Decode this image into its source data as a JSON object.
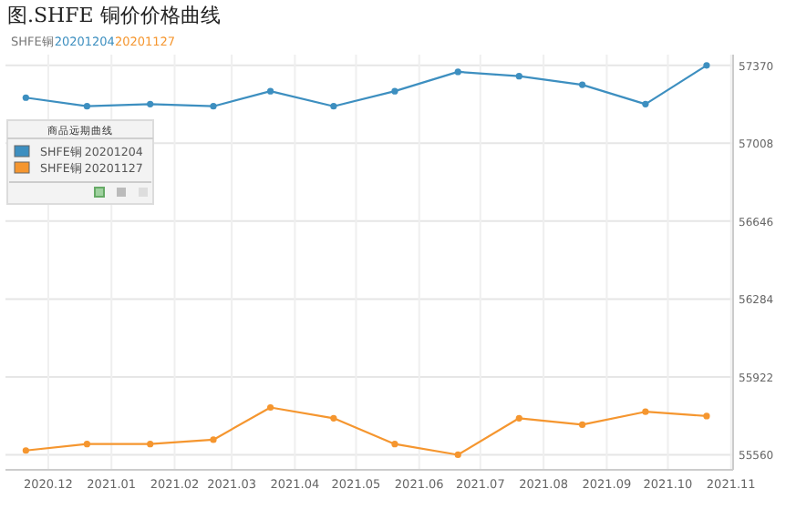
{
  "chart_data": {
    "type": "line",
    "title": "图.SHFE 铜价价格曲线",
    "subtitle": "SHFE铜",
    "annotations": [
      "20201204",
      "20201127"
    ],
    "legend_title": "商品远期曲线",
    "x": [
      "2020-11-20",
      "2020-12-20",
      "2021-01-20",
      "2021-02-20",
      "2021-03-20",
      "2021-04-20",
      "2021-05-20",
      "2021-06-20",
      "2021-07-20",
      "2021-08-20",
      "2021-09-20",
      "2021-10-20"
    ],
    "series": [
      {
        "name": "SHFE铜 20201204",
        "color": "#3d8fc0",
        "values": [
          57220,
          57180,
          57190,
          57180,
          57250,
          57180,
          57250,
          57340,
          57320,
          57280,
          57190,
          57370
        ]
      },
      {
        "name": "SHFE铜 20201127",
        "color": "#f5962f",
        "values": [
          55580,
          55610,
          55610,
          55630,
          55780,
          55730,
          55610,
          55560,
          55730,
          55700,
          55760,
          55740
        ]
      }
    ],
    "xlim": [
      "2020-11-10",
      "2021-11-02"
    ],
    "xticks": [
      {
        "value": "2020-12-01",
        "label": "2020.12"
      },
      {
        "value": "2021-01-01",
        "label": "2021.01"
      },
      {
        "value": "2021-02-01",
        "label": "2021.02"
      },
      {
        "value": "2021-03-01",
        "label": "2021.03"
      },
      {
        "value": "2021-04-01",
        "label": "2021.04"
      },
      {
        "value": "2021-05-01",
        "label": "2021.05"
      },
      {
        "value": "2021-06-01",
        "label": "2021.06"
      },
      {
        "value": "2021-07-01",
        "label": "2021.07"
      },
      {
        "value": "2021-08-01",
        "label": "2021.08"
      },
      {
        "value": "2021-09-01",
        "label": "2021.09"
      },
      {
        "value": "2021-10-01",
        "label": "2021.10"
      },
      {
        "value": "2021-11-01",
        "label": "2021.11"
      }
    ],
    "ylim": [
      55490,
      57420
    ],
    "yticks": [
      55560,
      55922,
      56284,
      56646,
      57008,
      57370
    ],
    "grid": true,
    "legend": "top left",
    "marker": "circle",
    "line_style": "solid"
  }
}
